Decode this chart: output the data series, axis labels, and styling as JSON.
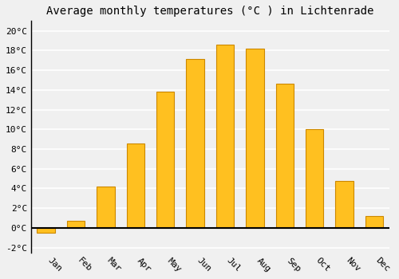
{
  "months": [
    "Jan",
    "Feb",
    "Mar",
    "Apr",
    "May",
    "Jun",
    "Jul",
    "Aug",
    "Sep",
    "Oct",
    "Nov",
    "Dec"
  ],
  "temperatures": [
    -0.5,
    0.7,
    4.2,
    8.6,
    13.8,
    17.1,
    18.6,
    18.2,
    14.6,
    10.0,
    4.8,
    1.2
  ],
  "bar_color": "#FFC020",
  "bar_edge_color": "#CC8800",
  "title": "Average monthly temperatures (°C ) in Lichtenrade",
  "ylim": [
    -2.5,
    21
  ],
  "yticks": [
    -2,
    0,
    2,
    4,
    6,
    8,
    10,
    12,
    14,
    16,
    18,
    20
  ],
  "ytick_labels": [
    "-2°C",
    "0°C",
    "2°C",
    "4°C",
    "6°C",
    "8°C",
    "10°C",
    "12°C",
    "14°C",
    "16°C",
    "18°C",
    "20°C"
  ],
  "background_color": "#f0f0f0",
  "grid_color": "#ffffff",
  "title_fontsize": 10,
  "tick_fontsize": 8,
  "bar_width": 0.6
}
